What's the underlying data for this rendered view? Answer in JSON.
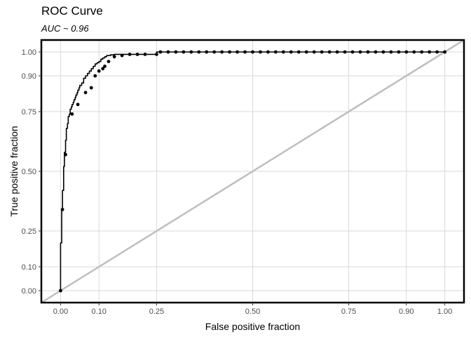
{
  "chart_data": {
    "type": "line",
    "title": "ROC Curve",
    "subtitle": "AUC ~ 0.96",
    "xlabel": "False positive fraction",
    "ylabel": "True positive fraction",
    "xlim": [
      -0.05,
      1.05
    ],
    "ylim": [
      -0.05,
      1.05
    ],
    "x_ticks": [
      0.0,
      0.1,
      0.25,
      0.5,
      0.75,
      0.9,
      1.0
    ],
    "x_tick_labels": [
      "0.00",
      "0.10",
      "0.25",
      "0.50",
      "0.75",
      "0.90",
      "1.00"
    ],
    "y_ticks": [
      0.0,
      0.1,
      0.25,
      0.5,
      0.75,
      0.9,
      1.0
    ],
    "y_tick_labels": [
      "0.00",
      "0.10",
      "0.25",
      "0.50",
      "0.75",
      "0.90",
      "1.00"
    ],
    "grid": true,
    "colors": {
      "curve": "#000000",
      "diagonal": "#bebebe",
      "grid": "#d9d9d9",
      "frame": "#000000"
    },
    "series": [
      {
        "x": [
          0.0,
          0.0,
          0.003,
          0.003,
          0.005,
          0.005,
          0.008,
          0.008,
          0.01,
          0.01,
          0.013,
          0.013,
          0.015,
          0.015,
          0.018,
          0.018,
          0.02,
          0.02,
          0.023,
          0.023,
          0.025,
          0.025,
          0.028,
          0.028,
          0.03,
          0.03,
          0.033,
          0.033,
          0.035,
          0.035,
          0.038,
          0.038,
          0.04,
          0.04,
          0.043,
          0.043,
          0.045,
          0.045,
          0.048,
          0.048,
          0.05,
          0.05,
          0.055,
          0.055,
          0.06,
          0.06,
          0.065,
          0.065,
          0.07,
          0.07,
          0.075,
          0.075,
          0.08,
          0.08,
          0.085,
          0.085,
          0.09,
          0.09,
          0.095,
          0.095,
          0.1,
          0.1,
          0.105,
          0.105,
          0.11,
          0.11,
          0.115,
          0.115,
          0.12,
          0.12,
          0.13,
          0.13,
          0.14,
          0.14,
          0.15,
          0.15,
          0.16,
          0.16,
          0.17,
          0.17,
          0.18,
          0.18,
          0.19,
          0.19,
          0.2,
          0.2,
          0.21,
          0.21,
          0.22,
          0.22,
          0.23,
          0.23,
          0.24,
          0.24,
          0.25,
          0.25
        ],
        "y": [
          0.0,
          0.2,
          0.2,
          0.34,
          0.34,
          0.42,
          0.42,
          0.52,
          0.52,
          0.58,
          0.58,
          0.63,
          0.63,
          0.68,
          0.68,
          0.7,
          0.7,
          0.73,
          0.73,
          0.74,
          0.74,
          0.76,
          0.76,
          0.77,
          0.77,
          0.78,
          0.78,
          0.79,
          0.79,
          0.8,
          0.8,
          0.81,
          0.81,
          0.82,
          0.82,
          0.83,
          0.83,
          0.84,
          0.84,
          0.85,
          0.85,
          0.86,
          0.86,
          0.87,
          0.87,
          0.89,
          0.89,
          0.9,
          0.9,
          0.91,
          0.91,
          0.92,
          0.92,
          0.93,
          0.93,
          0.94,
          0.94,
          0.95,
          0.95,
          0.955,
          0.955,
          0.96,
          0.96,
          0.97,
          0.97,
          0.975,
          0.975,
          0.98,
          0.98,
          0.985,
          0.985,
          0.988,
          0.988,
          0.99,
          0.99,
          0.99,
          0.99,
          0.99,
          0.99,
          0.99,
          0.99,
          0.99,
          0.99,
          0.99,
          0.99,
          0.99,
          0.99,
          0.99,
          0.99,
          0.99,
          0.99,
          0.99,
          0.99,
          0.99,
          0.99,
          1.0
        ]
      }
    ],
    "markers": {
      "x": [
        0.0,
        0.005,
        0.013,
        0.03,
        0.045,
        0.065,
        0.08,
        0.09,
        0.1,
        0.11,
        0.115,
        0.125,
        0.14,
        0.16,
        0.18,
        0.2,
        0.22,
        0.25,
        0.26,
        0.28,
        0.3,
        0.32,
        0.34,
        0.36,
        0.38,
        0.4,
        0.42,
        0.44,
        0.46,
        0.48,
        0.5,
        0.52,
        0.54,
        0.56,
        0.58,
        0.6,
        0.62,
        0.64,
        0.66,
        0.68,
        0.7,
        0.72,
        0.74,
        0.76,
        0.78,
        0.8,
        0.82,
        0.84,
        0.86,
        0.88,
        0.9,
        0.92,
        0.94,
        0.96,
        0.98,
        1.0
      ],
      "y": [
        0.0,
        0.34,
        0.57,
        0.74,
        0.78,
        0.83,
        0.85,
        0.9,
        0.92,
        0.93,
        0.94,
        0.96,
        0.98,
        0.985,
        0.99,
        0.99,
        0.99,
        0.99,
        1.0,
        1.0,
        1.0,
        1.0,
        1.0,
        1.0,
        1.0,
        1.0,
        1.0,
        1.0,
        1.0,
        1.0,
        1.0,
        1.0,
        1.0,
        1.0,
        1.0,
        1.0,
        1.0,
        1.0,
        1.0,
        1.0,
        1.0,
        1.0,
        1.0,
        1.0,
        1.0,
        1.0,
        1.0,
        1.0,
        1.0,
        1.0,
        1.0,
        1.0,
        1.0,
        1.0,
        1.0,
        1.0
      ]
    },
    "reference_line": {
      "x": [
        -0.05,
        1.05
      ],
      "y": [
        -0.05,
        1.05
      ]
    }
  }
}
